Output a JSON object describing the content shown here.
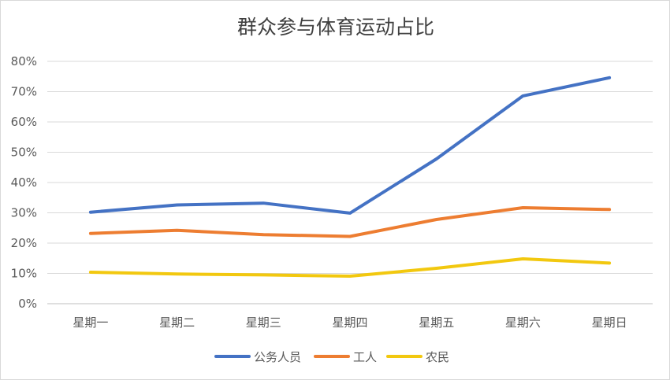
{
  "chart_data": {
    "type": "line",
    "title": "群众参与体育运动占比",
    "categories": [
      "星期一",
      "星期二",
      "星期三",
      "星期四",
      "星期五",
      "星期六",
      "星期日"
    ],
    "y_ticks": [
      "0%",
      "10%",
      "20%",
      "30%",
      "40%",
      "50%",
      "60%",
      "70%",
      "80%"
    ],
    "ylim": [
      0,
      0.8
    ],
    "grid": true,
    "legend_position": "bottom",
    "series": [
      {
        "name": "公务人员",
        "color": "#4472c4",
        "values": [
          0.302,
          0.326,
          0.332,
          0.299,
          0.478,
          0.686,
          0.746
        ]
      },
      {
        "name": "工人",
        "color": "#ed7d31",
        "values": [
          0.232,
          0.242,
          0.228,
          0.222,
          0.278,
          0.317,
          0.311
        ]
      },
      {
        "name": "农民",
        "color": "#f2c80f",
        "values": [
          0.104,
          0.098,
          0.095,
          0.091,
          0.117,
          0.148,
          0.134
        ]
      }
    ]
  }
}
